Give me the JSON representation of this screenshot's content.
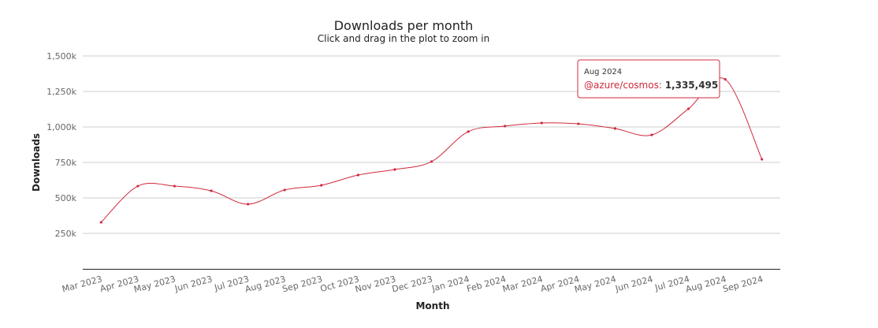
{
  "chart_data": {
    "type": "line",
    "title": "Downloads per month",
    "subtitle": "Click and drag in the plot to zoom in",
    "x_label": "Month",
    "y_label": "Downloads",
    "categories": [
      "Mar 2023",
      "Apr 2023",
      "May 2023",
      "Jun 2023",
      "Jul 2023",
      "Aug 2023",
      "Sep 2023",
      "Oct 2023",
      "Nov 2023",
      "Dec 2023",
      "Jan 2024",
      "Feb 2024",
      "Mar 2024",
      "Apr 2024",
      "May 2024",
      "Jun 2024",
      "Jul 2024",
      "Aug 2024",
      "Sep 2024"
    ],
    "series": [
      {
        "name": "@azure/cosmos",
        "color": "#d0293c",
        "values": [
          328000,
          583000,
          583000,
          550000,
          456000,
          556000,
          589000,
          661000,
          700000,
          756000,
          967000,
          1006000,
          1028000,
          1022000,
          989000,
          944000,
          1128000,
          1335495,
          772000
        ]
      }
    ],
    "ylim": [
      0,
      1500000
    ],
    "yticks": [
      {
        "value": 250000,
        "label": "250k"
      },
      {
        "value": 500000,
        "label": "500k"
      },
      {
        "value": 750000,
        "label": "750k"
      },
      {
        "value": 1000000,
        "label": "1,000k"
      },
      {
        "value": 1250000,
        "label": "1,250k"
      },
      {
        "value": 1500000,
        "label": "1,500k"
      }
    ],
    "grid": true,
    "tooltip": {
      "header": "Aug 2024",
      "label": "@azure/cosmos: ",
      "value": "1,335,495"
    }
  }
}
